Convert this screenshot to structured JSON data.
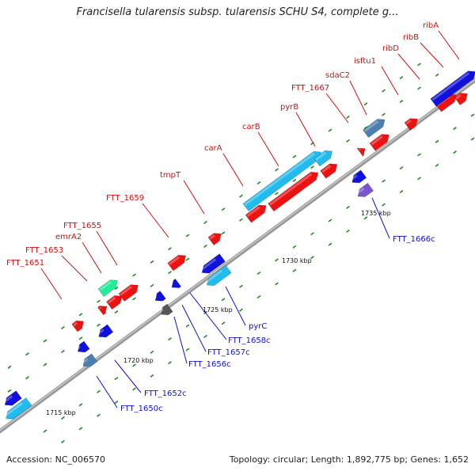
{
  "title": "Francisella tularensis subsp. tularensis SCHU S4, complete g...",
  "footer": {
    "accession": "Accession: NC_006570",
    "summary": "Topology: circular; Length: 1,892,775 bp; Genes: 1,652"
  },
  "colors": {
    "forward_label": "#cc1111",
    "reverse_label": "#1111cc",
    "gene_red": "#ee1111",
    "gene_blue": "#1111dd",
    "gene_cyan": "#22bbee",
    "gene_steel": "#4a7fb0",
    "gene_green": "#22ee99",
    "gene_purple": "#7755cc",
    "gene_gray": "#555555",
    "backbone": "#888888",
    "tick": "#228822"
  },
  "scale_labels": [
    "1715 kbp",
    "1720 kbp",
    "1725 kbp",
    "1730 kbp",
    "1735 kbp"
  ],
  "forward_gene_labels": [
    "FTT_1651",
    "FTT_1653",
    "emrA2",
    "FTT_1655",
    "FTT_1659",
    "tmpT",
    "carA",
    "carB",
    "pyrB",
    "FTT_1667",
    "sdaC2",
    "isftu1",
    "ribD",
    "ribB",
    "ribA"
  ],
  "reverse_gene_labels": [
    "FTT_1650c",
    "FTT_1652c",
    "FTT_1656c",
    "FTT_1657c",
    "FTT_1658c",
    "pyrC",
    "FTT_1666c"
  ]
}
